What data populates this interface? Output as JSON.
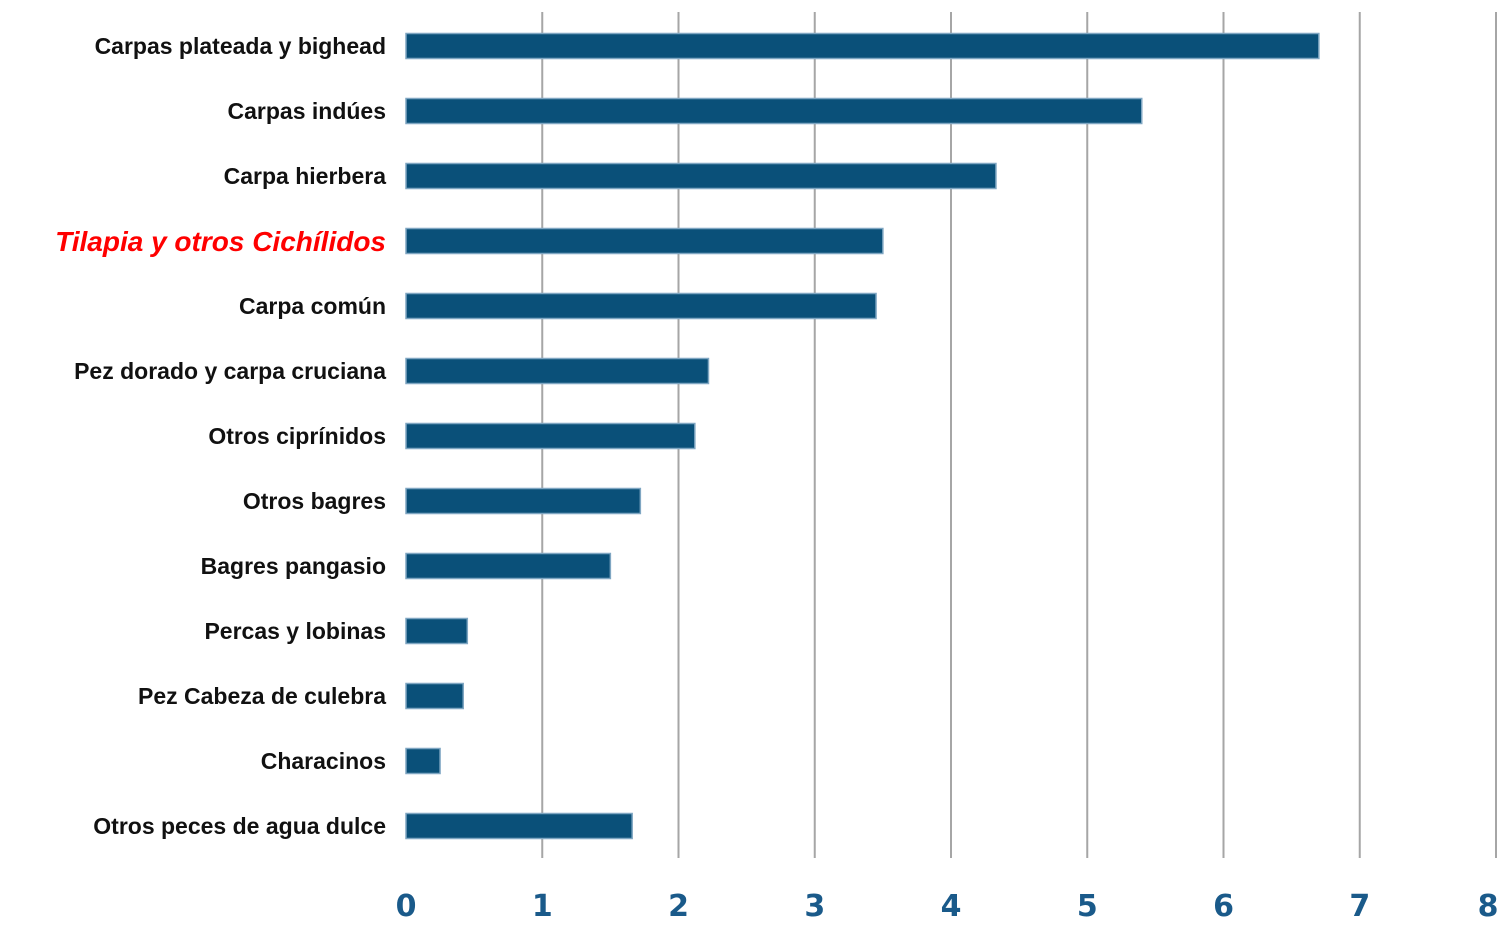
{
  "chart_data": {
    "type": "bar",
    "orientation": "horizontal",
    "categories": [
      "Carpas  plateada y bighead",
      "Carpas indúes",
      "Carpa hierbera",
      "Tilapia y otros Cichílidos",
      "Carpa común",
      "Pez dorado y carpa cruciana",
      "Otros ciprínidos",
      "Otros bagres",
      "Bagres pangasio",
      "Percas y lobinas",
      "Pez Cabeza de culebra",
      "Characinos",
      "Otros peces de agua dulce"
    ],
    "values": [
      6.7,
      5.4,
      4.33,
      3.5,
      3.45,
      2.22,
      2.12,
      1.72,
      1.5,
      0.45,
      0.42,
      0.25,
      1.66
    ],
    "highlighted_category": "Tilapia y otros Cichílidos",
    "xlim": [
      0,
      8
    ],
    "x_ticks": [
      0,
      1,
      2,
      3,
      4,
      5,
      6,
      7,
      8
    ],
    "x_tick_labels": [
      "0",
      "1",
      "2",
      "3",
      "4",
      "5",
      "6",
      "7",
      "8"
    ],
    "grid": "vertical",
    "title": "",
    "xlabel": "",
    "ylabel": "",
    "colors": {
      "bar": "#0a5079",
      "highlight_label": "#ff0000",
      "tick_label": "#1a5a8a",
      "grid": "#a6a6a6"
    }
  }
}
